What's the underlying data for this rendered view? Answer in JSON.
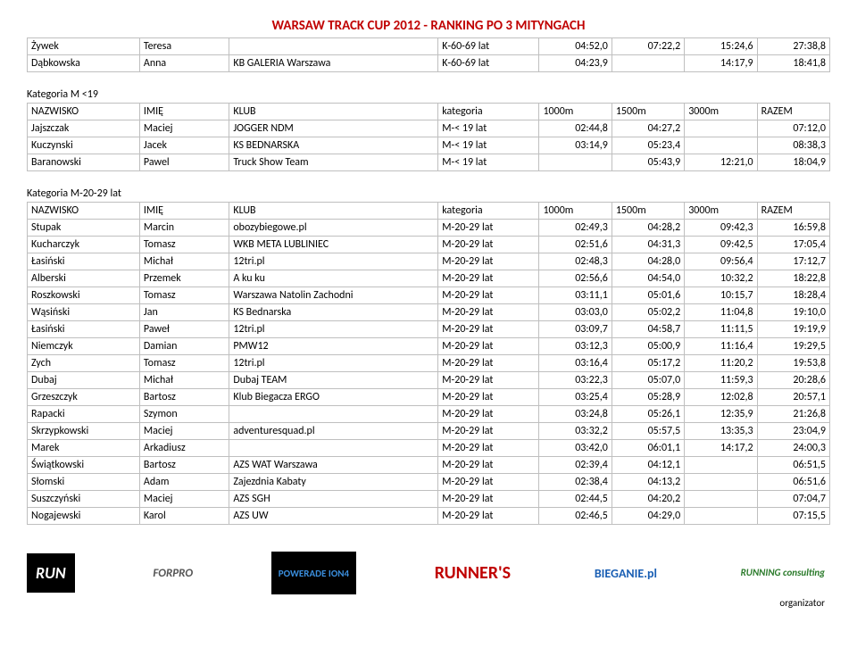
{
  "title": "WARSAW TRACK CUP 2012  -  RANKING PO 3 MITYNGACH",
  "top_table": {
    "rows": [
      [
        "Żywek",
        "Teresa",
        "",
        "K-60-69 lat",
        "04:52,0",
        "07:22,2",
        "15:24,6",
        "27:38,8"
      ],
      [
        "Dąbkowska",
        "Anna",
        "KB GALERIA Warszawa",
        "K-60-69 lat",
        "04:23,9",
        "",
        "14:17,9",
        "18:41,8"
      ]
    ]
  },
  "section1": {
    "label": "Kategoria M <19",
    "header": [
      "NAZWISKO",
      "IMIĘ",
      "KLUB",
      "kategoria",
      "1000m",
      "1500m",
      "3000m",
      "RAZEM"
    ],
    "rows": [
      [
        "Jajszczak",
        "Maciej",
        "JOGGER NDM",
        "M-< 19 lat",
        "02:44,8",
        "04:27,2",
        "",
        "07:12,0"
      ],
      [
        "Kuczynski",
        "Jacek",
        "KS BEDNARSKA",
        "M-< 19 lat",
        "03:14,9",
        "05:23,4",
        "",
        "08:38,3"
      ],
      [
        "Baranowski",
        "Pawel",
        "Truck Show Team",
        "M-< 19 lat",
        "",
        "05:43,9",
        "12:21,0",
        "18:04,9"
      ]
    ]
  },
  "section2": {
    "label": "Kategoria M-20-29 lat",
    "header": [
      "NAZWISKO",
      "IMIĘ",
      "KLUB",
      "kategoria",
      "1000m",
      "1500m",
      "3000m",
      "RAZEM"
    ],
    "rows": [
      [
        "Stupak",
        "Marcin",
        "obozybiegowe.pl",
        "M-20-29 lat",
        "02:49,3",
        "04:28,2",
        "09:42,3",
        "16:59,8"
      ],
      [
        "Kucharczyk",
        "Tomasz",
        "WKB META LUBLINIEC",
        "M-20-29 lat",
        "02:51,6",
        "04:31,3",
        "09:42,5",
        "17:05,4"
      ],
      [
        "Łasiński",
        "Michał",
        "12tri.pl",
        "M-20-29 lat",
        "02:48,3",
        "04:28,0",
        "09:56,4",
        "17:12,7"
      ],
      [
        "Alberski",
        "Przemek",
        "A ku ku",
        "M-20-29 lat",
        "02:56,6",
        "04:54,0",
        "10:32,2",
        "18:22,8"
      ],
      [
        "Roszkowski",
        "Tomasz",
        "Warszawa Natolin Zachodni",
        "M-20-29 lat",
        "03:11,1",
        "05:01,6",
        "10:15,7",
        "18:28,4"
      ],
      [
        "Wąsiński",
        "Jan",
        "KS Bednarska",
        "M-20-29 lat",
        "03:03,0",
        "05:02,2",
        "11:04,8",
        "19:10,0"
      ],
      [
        "Łasiński",
        "Paweł",
        "12tri.pl",
        "M-20-29 lat",
        "03:09,7",
        "04:58,7",
        "11:11,5",
        "19:19,9"
      ],
      [
        "Niemczyk",
        "Damian",
        "PMW12",
        "M-20-29 lat",
        "03:12,3",
        "05:00,9",
        "11:16,4",
        "19:29,5"
      ],
      [
        "Zych",
        "Tomasz",
        "12tri.pl",
        "M-20-29 lat",
        "03:16,4",
        "05:17,2",
        "11:20,2",
        "19:53,8"
      ],
      [
        "Dubaj",
        "Michał",
        "Dubaj TEAM",
        "M-20-29 lat",
        "03:22,3",
        "05:07,0",
        "11:59,3",
        "20:28,6"
      ],
      [
        "Grzeszczyk",
        "Bartosz",
        "Klub Biegacza ERGO",
        "M-20-29 lat",
        "03:25,4",
        "05:28,9",
        "12:02,8",
        "20:57,1"
      ],
      [
        "Rapacki",
        "Szymon",
        "",
        "M-20-29 lat",
        "03:24,8",
        "05:26,1",
        "12:35,9",
        "21:26,8"
      ],
      [
        "Skrzypkowski",
        "Maciej",
        "adventuresquad.pl",
        "M-20-29 lat",
        "03:32,2",
        "05:57,5",
        "13:35,3",
        "23:04,9"
      ],
      [
        "Marek",
        "Arkadiusz",
        "",
        "M-20-29 lat",
        "03:42,0",
        "06:01,1",
        "14:17,2",
        "24:00,3"
      ],
      [
        "Świątkowski",
        "Bartosz",
        "AZS WAT Warszawa",
        "M-20-29 lat",
        "02:39,4",
        "04:12,1",
        "",
        "06:51,5"
      ],
      [
        "Słomski",
        "Adam",
        "Zajezdnia Kabaty",
        "M-20-29 lat",
        "02:38,4",
        "04:13,2",
        "",
        "06:51,6"
      ],
      [
        "Suszczyński",
        "Maciej",
        "AZS SGH",
        "M-20-29 lat",
        "02:44,5",
        "04:20,2",
        "",
        "07:04,7"
      ],
      [
        "Nogajewski",
        "Karol",
        "AZS UW",
        "M-20-29 lat",
        "02:46,5",
        "04:29,0",
        "",
        "07:15,5"
      ]
    ]
  },
  "footer": {
    "logos": [
      "RUN",
      "FORPRO",
      "POWERADE ION4",
      "RUNNER'S",
      "BIEGANIE.pl",
      "RUNNING consulting"
    ],
    "organizator": "organizator"
  },
  "colors": {
    "title": "#c00000",
    "border": "#bfbfbf",
    "text": "#000000",
    "bg": "#ffffff"
  }
}
